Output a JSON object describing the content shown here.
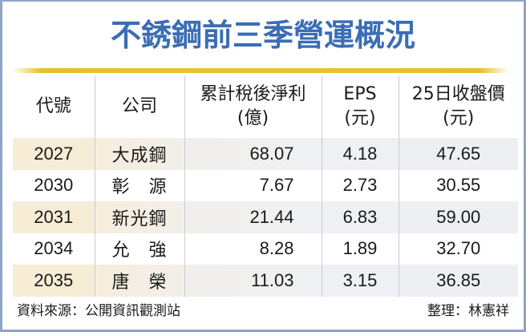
{
  "title": "不銹鋼前三季營運概況",
  "colors": {
    "title": "#3b6db5",
    "frame_border": "#8fa4c8",
    "accent_rule": "#e6c02a",
    "shaded_row_left": "#f7ecd6",
    "shaded_row_right": "#edeff3"
  },
  "table": {
    "headers": [
      {
        "line1": "代號",
        "line2": ""
      },
      {
        "line1": "公司",
        "line2": ""
      },
      {
        "line1": "累計稅後淨利",
        "line2": "(億)"
      },
      {
        "line1": "EPS",
        "line2": "(元)"
      },
      {
        "line1": "25日收盤價",
        "line2": "(元)"
      }
    ],
    "rows": [
      {
        "code": "2027",
        "company": "大成鋼",
        "net_income": "68.07",
        "eps": "4.18",
        "close": "47.65"
      },
      {
        "code": "2030",
        "company": "彰　源",
        "net_income": "7.67",
        "eps": "2.73",
        "close": "30.55"
      },
      {
        "code": "2031",
        "company": "新光鋼",
        "net_income": "21.44",
        "eps": "6.83",
        "close": "59.00"
      },
      {
        "code": "2034",
        "company": "允　強",
        "net_income": "8.28",
        "eps": "1.89",
        "close": "32.70"
      },
      {
        "code": "2035",
        "company": "唐　榮",
        "net_income": "11.03",
        "eps": "3.15",
        "close": "36.85"
      }
    ]
  },
  "footer": {
    "source": "資料來源：公開資訊觀測站",
    "compiler": "整理：林憲祥"
  }
}
